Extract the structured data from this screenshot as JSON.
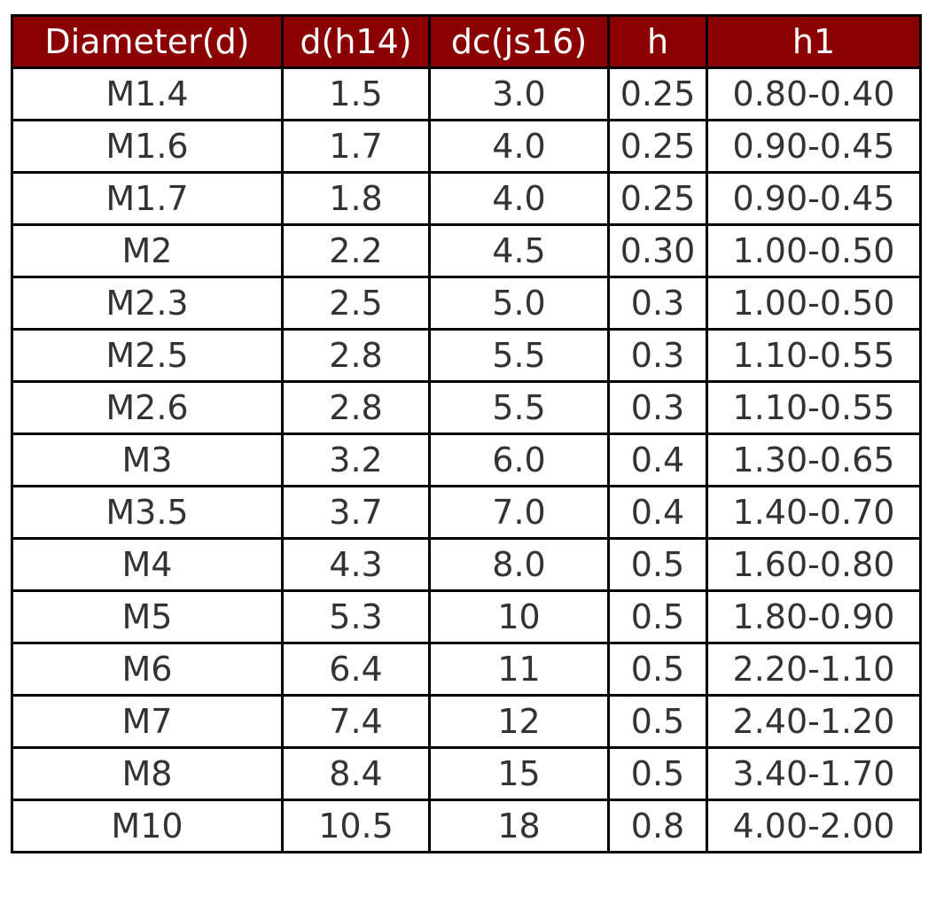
{
  "table": {
    "headers": [
      "Diameter(d)",
      "d(h14)",
      "dc(js16)",
      "h",
      "h1"
    ],
    "rows": [
      [
        "M1.4",
        "1.5",
        "3.0",
        "0.25",
        "0.80-0.40"
      ],
      [
        "M1.6",
        "1.7",
        "4.0",
        "0.25",
        "0.90-0.45"
      ],
      [
        "M1.7",
        "1.8",
        "4.0",
        "0.25",
        "0.90-0.45"
      ],
      [
        "M2",
        "2.2",
        "4.5",
        "0.30",
        "1.00-0.50"
      ],
      [
        "M2.3",
        "2.5",
        "5.0",
        "0.3",
        "1.00-0.50"
      ],
      [
        "M2.5",
        "2.8",
        "5.5",
        "0.3",
        "1.10-0.55"
      ],
      [
        "M2.6",
        "2.8",
        "5.5",
        "0.3",
        "1.10-0.55"
      ],
      [
        "M3",
        "3.2",
        "6.0",
        "0.4",
        "1.30-0.65"
      ],
      [
        "M3.5",
        "3.7",
        "7.0",
        "0.4",
        "1.40-0.70"
      ],
      [
        "M4",
        "4.3",
        "8.0",
        "0.5",
        "1.60-0.80"
      ],
      [
        "M5",
        "5.3",
        "10",
        "0.5",
        "1.80-0.90"
      ],
      [
        "M6",
        "6.4",
        "11",
        "0.5",
        "2.20-1.10"
      ],
      [
        "M7",
        "7.4",
        "12",
        "0.5",
        "2.40-1.20"
      ],
      [
        "M8",
        "8.4",
        "15",
        "0.5",
        "3.40-1.70"
      ],
      [
        "M10",
        "10.5",
        "18",
        "0.8",
        "4.00-2.00"
      ]
    ]
  },
  "colors": {
    "header_bg": "#8b0000",
    "header_text": "#ffffff",
    "cell_text": "#333333",
    "border": "#000000"
  }
}
